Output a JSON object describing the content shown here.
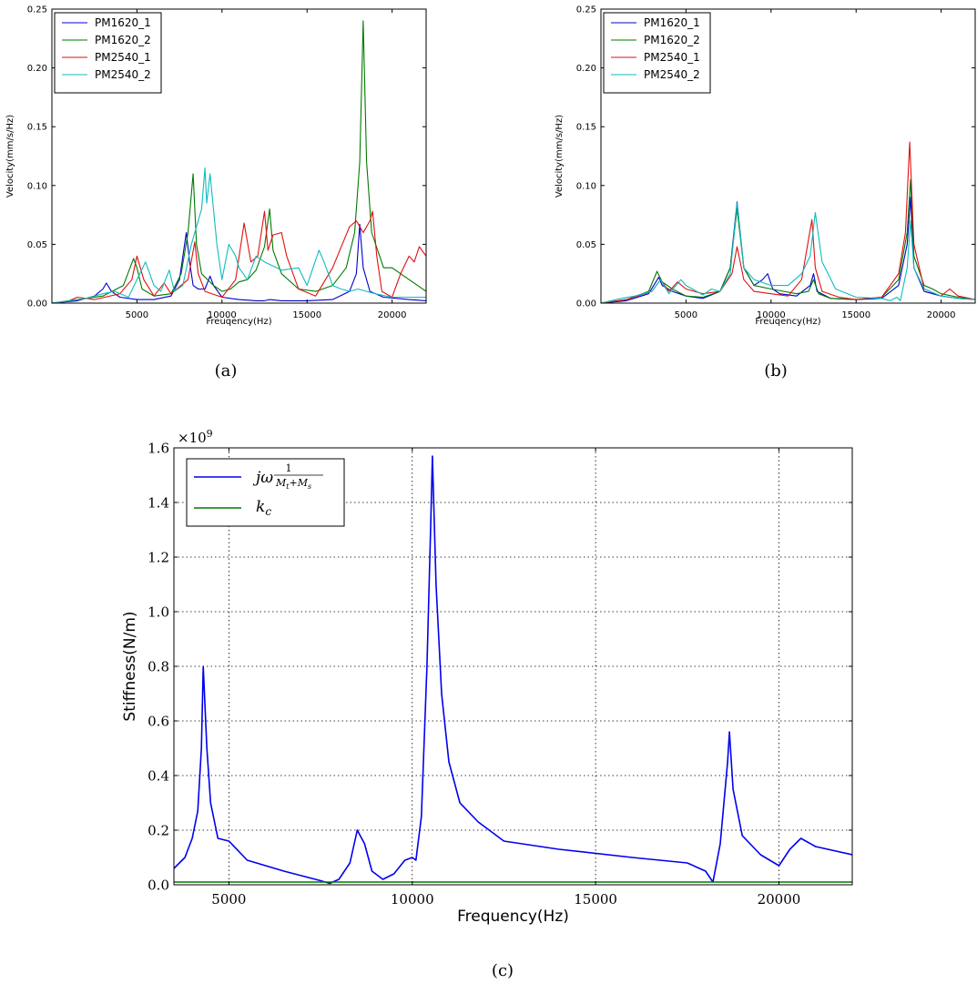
{
  "chart_data": [
    {
      "type": "line",
      "caption": "(a)",
      "xlabel": "Freuqency(Hz)",
      "ylabel": "Velocity(mm/s/Hz)",
      "xlim": [
        0,
        22000
      ],
      "ylim": [
        0,
        0.25
      ],
      "xticks": [
        "5000",
        "10000",
        "15000",
        "20000"
      ],
      "yticks": [
        "0.00",
        "0.05",
        "0.10",
        "0.15",
        "0.20",
        "0.25"
      ],
      "grid": false,
      "legend": "top-left",
      "series": [
        {
          "name": "PM1620_1",
          "color": "#0000cc",
          "x": [
            0,
            1500,
            2500,
            3000,
            3200,
            3500,
            4000,
            5000,
            6000,
            7000,
            7500,
            7900,
            8100,
            8300,
            8600,
            9000,
            9300,
            9500,
            10000,
            11000,
            12000,
            12500,
            12800,
            13500,
            15000,
            16500,
            17500,
            17900,
            18100,
            18300,
            18700,
            19500,
            21000,
            22000
          ],
          "y": [
            0,
            0.002,
            0.006,
            0.012,
            0.017,
            0.01,
            0.005,
            0.003,
            0.003,
            0.006,
            0.02,
            0.06,
            0.035,
            0.015,
            0.012,
            0.012,
            0.023,
            0.015,
            0.005,
            0.003,
            0.002,
            0.002,
            0.003,
            0.002,
            0.002,
            0.003,
            0.01,
            0.025,
            0.067,
            0.03,
            0.01,
            0.005,
            0.003,
            0.002
          ]
        },
        {
          "name": "PM1620_2",
          "color": "#007a00",
          "x": [
            0,
            1500,
            3000,
            4200,
            4800,
            5000,
            5300,
            6000,
            7000,
            7600,
            8000,
            8300,
            8500,
            8800,
            9500,
            10000,
            10500,
            11000,
            11500,
            12000,
            12500,
            12800,
            13000,
            13500,
            14500,
            15500,
            16500,
            17300,
            17800,
            18100,
            18300,
            18500,
            18800,
            19500,
            20000,
            21000,
            22000
          ],
          "y": [
            0,
            0.003,
            0.006,
            0.015,
            0.038,
            0.03,
            0.012,
            0.006,
            0.008,
            0.025,
            0.06,
            0.11,
            0.05,
            0.025,
            0.015,
            0.01,
            0.012,
            0.018,
            0.02,
            0.028,
            0.048,
            0.08,
            0.045,
            0.025,
            0.012,
            0.01,
            0.015,
            0.03,
            0.06,
            0.12,
            0.24,
            0.12,
            0.06,
            0.03,
            0.03,
            0.02,
            0.01
          ]
        },
        {
          "name": "PM2540_1",
          "color": "#e01010",
          "x": [
            0,
            1000,
            1500,
            2500,
            4000,
            4700,
            5000,
            5400,
            6000,
            6600,
            7000,
            8000,
            8400,
            8600,
            9000,
            10000,
            10800,
            11300,
            11700,
            12100,
            12500,
            12700,
            13000,
            13500,
            13800,
            14500,
            15500,
            16500,
            17500,
            17900,
            18300,
            18700,
            18850,
            19100,
            19400,
            20000,
            20500,
            21000,
            21300,
            21600,
            22000
          ],
          "y": [
            0,
            0.002,
            0.005,
            0.003,
            0.008,
            0.02,
            0.04,
            0.02,
            0.006,
            0.017,
            0.008,
            0.02,
            0.052,
            0.025,
            0.01,
            0.005,
            0.02,
            0.068,
            0.035,
            0.04,
            0.078,
            0.045,
            0.058,
            0.06,
            0.04,
            0.012,
            0.006,
            0.03,
            0.065,
            0.07,
            0.06,
            0.07,
            0.078,
            0.04,
            0.01,
            0.005,
            0.025,
            0.04,
            0.035,
            0.048,
            0.04
          ]
        },
        {
          "name": "PM2540_2",
          "color": "#10bcbc",
          "x": [
            0,
            1000,
            2000,
            3000,
            3700,
            4500,
            5500,
            6000,
            6400,
            6900,
            7200,
            7700,
            8200,
            8800,
            9000,
            9100,
            9300,
            9700,
            10000,
            10400,
            10800,
            11000,
            11500,
            12000,
            12500,
            13500,
            14500,
            15000,
            15700,
            16000,
            16500,
            17000,
            17500,
            18000,
            18500,
            19000,
            20000,
            21000,
            22000
          ],
          "y": [
            0,
            0.002,
            0.004,
            0.008,
            0.01,
            0.005,
            0.035,
            0.015,
            0.01,
            0.028,
            0.01,
            0.015,
            0.05,
            0.08,
            0.115,
            0.085,
            0.11,
            0.05,
            0.02,
            0.05,
            0.04,
            0.03,
            0.02,
            0.04,
            0.035,
            0.028,
            0.03,
            0.015,
            0.045,
            0.035,
            0.015,
            0.012,
            0.01,
            0.012,
            0.01,
            0.008,
            0.005,
            0.005,
            0.005
          ]
        }
      ]
    },
    {
      "type": "line",
      "caption": "(b)",
      "xlabel": "Freuqency(Hz)",
      "ylabel": "Velocity(mm/s/Hz)",
      "xlim": [
        0,
        22000
      ],
      "ylim": [
        0,
        0.25
      ],
      "xticks": [
        "5000",
        "10000",
        "15000",
        "20000"
      ],
      "yticks": [
        "0.00",
        "0.05",
        "0.10",
        "0.15",
        "0.20",
        "0.25"
      ],
      "grid": false,
      "legend": "top-left",
      "series": [
        {
          "name": "PM1620_1",
          "color": "#0000cc",
          "x": [
            0,
            1500,
            2800,
            3400,
            3600,
            4200,
            5000,
            6000,
            7000,
            7600,
            8000,
            8400,
            9000,
            9500,
            9800,
            10100,
            10500,
            11500,
            12300,
            12500,
            12700,
            13500,
            15000,
            16500,
            17500,
            18000,
            18200,
            18400,
            19000,
            20000,
            21000,
            22000
          ],
          "y": [
            0,
            0.002,
            0.008,
            0.022,
            0.015,
            0.01,
            0.006,
            0.004,
            0.01,
            0.03,
            0.086,
            0.03,
            0.015,
            0.02,
            0.025,
            0.012,
            0.008,
            0.006,
            0.015,
            0.025,
            0.01,
            0.004,
            0.003,
            0.004,
            0.015,
            0.05,
            0.09,
            0.03,
            0.01,
            0.006,
            0.004,
            0.003
          ]
        },
        {
          "name": "PM1620_2",
          "color": "#007a00",
          "x": [
            0,
            1500,
            2800,
            3300,
            3600,
            4200,
            5000,
            6000,
            7000,
            7600,
            8000,
            8400,
            9000,
            10000,
            11500,
            12200,
            12500,
            12800,
            13500,
            15000,
            16500,
            17500,
            18000,
            18200,
            18400,
            19000,
            19500,
            20000,
            21000,
            22000
          ],
          "y": [
            0,
            0.003,
            0.01,
            0.027,
            0.018,
            0.012,
            0.006,
            0.005,
            0.01,
            0.03,
            0.08,
            0.03,
            0.015,
            0.012,
            0.008,
            0.01,
            0.02,
            0.008,
            0.004,
            0.003,
            0.005,
            0.02,
            0.06,
            0.105,
            0.04,
            0.015,
            0.012,
            0.008,
            0.005,
            0.003
          ]
        },
        {
          "name": "PM2540_1",
          "color": "#e01010",
          "x": [
            0,
            1500,
            3000,
            3500,
            4000,
            4500,
            5000,
            6000,
            7000,
            7700,
            8000,
            8400,
            9000,
            10000,
            11000,
            11800,
            12400,
            12600,
            13000,
            14000,
            15000,
            16500,
            17500,
            17900,
            18150,
            18400,
            19000,
            20000,
            20500,
            21000,
            22000
          ],
          "y": [
            0,
            0.003,
            0.01,
            0.02,
            0.01,
            0.018,
            0.012,
            0.008,
            0.01,
            0.025,
            0.048,
            0.02,
            0.01,
            0.008,
            0.006,
            0.02,
            0.071,
            0.03,
            0.01,
            0.005,
            0.003,
            0.005,
            0.025,
            0.06,
            0.137,
            0.05,
            0.012,
            0.006,
            0.012,
            0.006,
            0.003
          ]
        },
        {
          "name": "PM2540_2",
          "color": "#10bcbc",
          "x": [
            0,
            1200,
            2000,
            3000,
            3500,
            4000,
            4700,
            5000,
            6000,
            6500,
            7000,
            7600,
            8000,
            8400,
            9000,
            10000,
            11000,
            11800,
            12300,
            12600,
            13000,
            13800,
            15000,
            16500,
            17000,
            17400,
            17600,
            18000,
            18200,
            18400,
            19000,
            20000,
            21000,
            22000
          ],
          "y": [
            0,
            0.004,
            0.006,
            0.01,
            0.02,
            0.008,
            0.02,
            0.015,
            0.007,
            0.012,
            0.01,
            0.025,
            0.085,
            0.03,
            0.02,
            0.015,
            0.015,
            0.025,
            0.04,
            0.077,
            0.035,
            0.012,
            0.005,
            0.004,
            0.002,
            0.005,
            0.002,
            0.03,
            0.07,
            0.03,
            0.012,
            0.006,
            0.004,
            0.003
          ]
        }
      ]
    },
    {
      "type": "line",
      "caption": "(c)",
      "xlabel": "Frequency(Hz)",
      "ylabel": "Stiffness(N/m)",
      "scale_label": "×10",
      "scale_exp": "9",
      "xlim": [
        3500,
        22000
      ],
      "ylim": [
        0,
        1.6
      ],
      "xticks": [
        "5000",
        "10000",
        "15000",
        "20000"
      ],
      "yticks": [
        "0.0",
        "0.2",
        "0.4",
        "0.6",
        "0.8",
        "1.0",
        "1.2",
        "1.4",
        "1.6"
      ],
      "grid": true,
      "legend": "top-left",
      "series": [
        {
          "name": "jω 1/(M_t+M_s)",
          "color": "#0000ee",
          "x": [
            3500,
            3800,
            4000,
            4150,
            4250,
            4300,
            4400,
            4500,
            4700,
            5000,
            5500,
            6500,
            7500,
            7750,
            8000,
            8300,
            8500,
            8700,
            8900,
            9200,
            9500,
            9800,
            10000,
            10100,
            10250,
            10400,
            10500,
            10550,
            10650,
            10800,
            11000,
            11300,
            11800,
            12500,
            14000,
            16000,
            17500,
            18000,
            18200,
            18400,
            18600,
            18650,
            18750,
            19000,
            19500,
            20000,
            20300,
            20600,
            21000,
            22000
          ],
          "y": [
            0.06,
            0.1,
            0.17,
            0.27,
            0.5,
            0.8,
            0.5,
            0.3,
            0.17,
            0.16,
            0.09,
            0.05,
            0.015,
            0.005,
            0.02,
            0.08,
            0.2,
            0.15,
            0.05,
            0.02,
            0.04,
            0.09,
            0.1,
            0.09,
            0.25,
            0.8,
            1.3,
            1.57,
            1.1,
            0.7,
            0.45,
            0.3,
            0.23,
            0.16,
            0.13,
            0.1,
            0.08,
            0.05,
            0.01,
            0.15,
            0.45,
            0.56,
            0.35,
            0.18,
            0.11,
            0.07,
            0.13,
            0.17,
            0.14,
            0.11
          ]
        },
        {
          "name": "k_c",
          "color": "#007a00",
          "x": [
            3500,
            22000
          ],
          "y": [
            0.01,
            0.01
          ]
        }
      ]
    }
  ]
}
